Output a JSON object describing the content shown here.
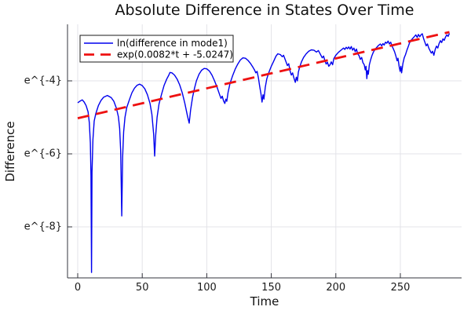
{
  "colors": {
    "background": "#ffffff",
    "grid": "#e3e3e8",
    "spine": "#33343c",
    "legend_border": "#1a1a1a",
    "series1_blue": "#0000ee",
    "series2_red": "#ee1111",
    "text": "#111111"
  },
  "chart_data": {
    "type": "line",
    "title": "Absolute Difference in States Over Time",
    "xlabel": "Time",
    "ylabel": "Difference",
    "y_scale": "natural-log (tick labels show e^{k})",
    "xlim": [
      -8,
      296
    ],
    "ylim_ln": [
      -9.4,
      -2.45
    ],
    "grid": true,
    "legend_position": "top-left",
    "x_ticks": [
      {
        "value": 0,
        "label": "0"
      },
      {
        "value": 50,
        "label": "50"
      },
      {
        "value": 100,
        "label": "100"
      },
      {
        "value": 150,
        "label": "150"
      },
      {
        "value": 200,
        "label": "200"
      },
      {
        "value": 250,
        "label": "250"
      }
    ],
    "y_ticks": [
      {
        "value": -4,
        "label": "e^{-4}"
      },
      {
        "value": -6,
        "label": "e^{-6}"
      },
      {
        "value": -8,
        "label": "e^{-8}"
      }
    ],
    "series": [
      {
        "name": "ln(difference in mode1)",
        "color": "#0000ee",
        "line_style": "solid",
        "line_width": 1.4,
        "points_t_lnv": [
          [
            0,
            -4.6
          ],
          [
            2,
            -4.55
          ],
          [
            3.5,
            -4.52
          ],
          [
            5,
            -4.58
          ],
          [
            6.5,
            -4.68
          ],
          [
            8,
            -4.85
          ],
          [
            9,
            -5.15
          ],
          [
            9.8,
            -5.7
          ],
          [
            10.3,
            -6.6
          ],
          [
            10.7,
            -9.25
          ],
          [
            11.1,
            -6.5
          ],
          [
            11.8,
            -5.6
          ],
          [
            12.8,
            -5.1
          ],
          [
            14,
            -4.9
          ],
          [
            16,
            -4.68
          ],
          [
            18,
            -4.54
          ],
          [
            20,
            -4.45
          ],
          [
            23,
            -4.4
          ],
          [
            26,
            -4.46
          ],
          [
            28,
            -4.56
          ],
          [
            30,
            -4.75
          ],
          [
            31.5,
            -4.98
          ],
          [
            32.5,
            -5.3
          ],
          [
            33.3,
            -5.9
          ],
          [
            34.1,
            -7.7
          ],
          [
            34.8,
            -6.1
          ],
          [
            35.6,
            -5.4
          ],
          [
            36.6,
            -5.0
          ],
          [
            38,
            -4.73
          ],
          [
            40,
            -4.52
          ],
          [
            42,
            -4.33
          ],
          [
            44,
            -4.2
          ],
          [
            46,
            -4.12
          ],
          [
            48,
            -4.09
          ],
          [
            50,
            -4.13
          ],
          [
            52,
            -4.22
          ],
          [
            54,
            -4.38
          ],
          [
            56,
            -4.62
          ],
          [
            57.5,
            -4.92
          ],
          [
            58.8,
            -5.45
          ],
          [
            59.6,
            -6.06
          ],
          [
            60.4,
            -5.5
          ],
          [
            61.5,
            -5.0
          ],
          [
            63,
            -4.63
          ],
          [
            65,
            -4.36
          ],
          [
            67,
            -4.12
          ],
          [
            69,
            -3.95
          ],
          [
            70.5,
            -3.85
          ],
          [
            71.5,
            -3.77
          ],
          [
            73,
            -3.78
          ],
          [
            75,
            -3.84
          ],
          [
            77,
            -3.95
          ],
          [
            79,
            -4.11
          ],
          [
            81,
            -4.33
          ],
          [
            83,
            -4.62
          ],
          [
            85,
            -4.95
          ],
          [
            86.4,
            -5.16
          ],
          [
            87.5,
            -4.8
          ],
          [
            89,
            -4.45
          ],
          [
            90.5,
            -4.2
          ],
          [
            92,
            -4.0
          ],
          [
            94,
            -3.82
          ],
          [
            96,
            -3.71
          ],
          [
            98,
            -3.66
          ],
          [
            100,
            -3.67
          ],
          [
            102,
            -3.73
          ],
          [
            104,
            -3.84
          ],
          [
            106,
            -4.0
          ],
          [
            108,
            -4.18
          ],
          [
            110,
            -4.38
          ],
          [
            111,
            -4.48
          ],
          [
            112,
            -4.42
          ],
          [
            113,
            -4.55
          ],
          [
            114,
            -4.62
          ],
          [
            114.8,
            -4.5
          ],
          [
            115.5,
            -4.56
          ],
          [
            116.5,
            -4.32
          ],
          [
            118,
            -4.07
          ],
          [
            120,
            -3.86
          ],
          [
            122,
            -3.68
          ],
          [
            124,
            -3.54
          ],
          [
            126,
            -3.43
          ],
          [
            128,
            -3.37
          ],
          [
            130,
            -3.38
          ],
          [
            132,
            -3.44
          ],
          [
            134,
            -3.53
          ],
          [
            136,
            -3.64
          ],
          [
            137,
            -3.7
          ],
          [
            138,
            -3.78
          ],
          [
            139,
            -3.74
          ],
          [
            140,
            -3.92
          ],
          [
            141,
            -4.15
          ],
          [
            142,
            -4.35
          ],
          [
            142.8,
            -4.58
          ],
          [
            143.6,
            -4.38
          ],
          [
            144.3,
            -4.5
          ],
          [
            145.3,
            -4.18
          ],
          [
            146.5,
            -3.95
          ],
          [
            148,
            -3.78
          ],
          [
            150,
            -3.6
          ],
          [
            152,
            -3.45
          ],
          [
            153.5,
            -3.33
          ],
          [
            155,
            -3.26
          ],
          [
            157,
            -3.28
          ],
          [
            158.5,
            -3.34
          ],
          [
            159.5,
            -3.3
          ],
          [
            161,
            -3.44
          ],
          [
            162.5,
            -3.58
          ],
          [
            163.5,
            -3.53
          ],
          [
            164.5,
            -3.72
          ],
          [
            165.5,
            -3.84
          ],
          [
            166.5,
            -3.78
          ],
          [
            167.5,
            -3.92
          ],
          [
            168.6,
            -4.04
          ],
          [
            169.4,
            -3.9
          ],
          [
            170.2,
            -4.0
          ],
          [
            171,
            -3.76
          ],
          [
            172,
            -3.62
          ],
          [
            173.5,
            -3.47
          ],
          [
            175,
            -3.36
          ],
          [
            177,
            -3.26
          ],
          [
            179,
            -3.19
          ],
          [
            181,
            -3.15
          ],
          [
            183,
            -3.16
          ],
          [
            185,
            -3.21
          ],
          [
            186.5,
            -3.17
          ],
          [
            188,
            -3.27
          ],
          [
            189.5,
            -3.37
          ],
          [
            190.5,
            -3.32
          ],
          [
            191.5,
            -3.44
          ],
          [
            192.5,
            -3.54
          ],
          [
            193.5,
            -3.49
          ],
          [
            194.5,
            -3.6
          ],
          [
            195.5,
            -3.56
          ],
          [
            196.5,
            -3.48
          ],
          [
            197.5,
            -3.56
          ],
          [
            198.5,
            -3.39
          ],
          [
            200,
            -3.3
          ],
          [
            202,
            -3.22
          ],
          [
            204,
            -3.16
          ],
          [
            206,
            -3.1
          ],
          [
            207,
            -3.14
          ],
          [
            208,
            -3.08
          ],
          [
            209,
            -3.12
          ],
          [
            210,
            -3.07
          ],
          [
            211,
            -3.13
          ],
          [
            212,
            -3.06
          ],
          [
            213,
            -3.16
          ],
          [
            214,
            -3.1
          ],
          [
            215,
            -3.2
          ],
          [
            216,
            -3.13
          ],
          [
            217,
            -3.26
          ],
          [
            218,
            -3.31
          ],
          [
            219,
            -3.41
          ],
          [
            220,
            -3.36
          ],
          [
            221,
            -3.5
          ],
          [
            222,
            -3.56
          ],
          [
            222.8,
            -3.7
          ],
          [
            223.4,
            -3.6
          ],
          [
            224,
            -3.94
          ],
          [
            224.6,
            -3.72
          ],
          [
            225.2,
            -3.82
          ],
          [
            226,
            -3.56
          ],
          [
            227,
            -3.42
          ],
          [
            228,
            -3.31
          ],
          [
            229,
            -3.22
          ],
          [
            230,
            -3.16
          ],
          [
            231.5,
            -3.09
          ],
          [
            233,
            -3.03
          ],
          [
            234.5,
            -2.99
          ],
          [
            235.5,
            -3.04
          ],
          [
            236.5,
            -2.98
          ],
          [
            237.5,
            -3.02
          ],
          [
            238.5,
            -2.94
          ],
          [
            239.5,
            -2.97
          ],
          [
            240.5,
            -2.91
          ],
          [
            241.5,
            -2.99
          ],
          [
            242.5,
            -2.94
          ],
          [
            243.5,
            -3.04
          ],
          [
            244.5,
            -3.12
          ],
          [
            245.5,
            -3.2
          ],
          [
            246.5,
            -3.31
          ],
          [
            247.5,
            -3.45
          ],
          [
            248.2,
            -3.38
          ],
          [
            249,
            -3.6
          ],
          [
            249.8,
            -3.74
          ],
          [
            250.4,
            -3.6
          ],
          [
            251,
            -3.78
          ],
          [
            252,
            -3.52
          ],
          [
            253,
            -3.37
          ],
          [
            254,
            -3.28
          ],
          [
            255,
            -3.17
          ],
          [
            256,
            -3.07
          ],
          [
            257,
            -2.97
          ],
          [
            258,
            -2.9
          ],
          [
            259.5,
            -2.84
          ],
          [
            261,
            -2.78
          ],
          [
            262,
            -2.74
          ],
          [
            263,
            -2.81
          ],
          [
            264,
            -2.73
          ],
          [
            265,
            -2.79
          ],
          [
            266,
            -2.74
          ],
          [
            267,
            -2.71
          ],
          [
            268,
            -2.84
          ],
          [
            269,
            -2.94
          ],
          [
            270,
            -3.04
          ],
          [
            271,
            -2.99
          ],
          [
            272,
            -3.1
          ],
          [
            273,
            -3.17
          ],
          [
            274,
            -3.24
          ],
          [
            275,
            -3.19
          ],
          [
            276,
            -3.3
          ],
          [
            277,
            -3.14
          ],
          [
            278,
            -3.05
          ],
          [
            279,
            -3.1
          ],
          [
            280,
            -2.98
          ],
          [
            281,
            -2.9
          ],
          [
            282,
            -2.95
          ],
          [
            283,
            -2.85
          ],
          [
            284,
            -2.89
          ],
          [
            285,
            -2.8
          ],
          [
            286,
            -2.74
          ],
          [
            287,
            -2.78
          ],
          [
            288,
            -2.7
          ]
        ]
      },
      {
        "name": "exp(0.0082*t + -5.0247)",
        "color": "#ee1111",
        "line_style": "dashed",
        "line_width": 2.8,
        "fit_slope": 0.0082,
        "fit_intercept": -5.0247,
        "t_range": [
          0,
          288
        ]
      }
    ]
  }
}
